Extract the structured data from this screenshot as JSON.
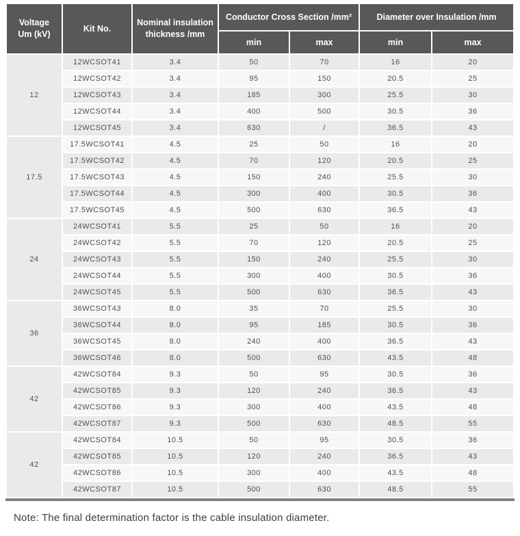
{
  "table": {
    "headers": {
      "voltage": "Voltage\nUm (kV)",
      "kit_no": "Kit No.",
      "nominal_thickness": "Nominal insulation\nthickness /mm",
      "conductor_cross_section": "Conductor Cross Section /mm²",
      "diameter_over_insulation": "Diameter over Insulation /mm",
      "ccs_min": "min",
      "ccs_max": "max",
      "doi_min": "min",
      "doi_max": "max"
    },
    "groups": [
      {
        "voltage": "12",
        "rows": [
          {
            "kit": "12WCSOT41",
            "thickness": "3.4",
            "ccs_min": "50",
            "ccs_max": "70",
            "doi_min": "16",
            "doi_max": "20"
          },
          {
            "kit": "12WCSOT42",
            "thickness": "3.4",
            "ccs_min": "95",
            "ccs_max": "150",
            "doi_min": "20.5",
            "doi_max": "25"
          },
          {
            "kit": "12WCSOT43",
            "thickness": "3.4",
            "ccs_min": "185",
            "ccs_max": "300",
            "doi_min": "25.5",
            "doi_max": "30"
          },
          {
            "kit": "12WCSOT44",
            "thickness": "3.4",
            "ccs_min": "400",
            "ccs_max": "500",
            "doi_min": "30.5",
            "doi_max": "36"
          },
          {
            "kit": "12WCSOT45",
            "thickness": "3.4",
            "ccs_min": "630",
            "ccs_max": "/",
            "doi_min": "36.5",
            "doi_max": "43"
          }
        ]
      },
      {
        "voltage": "17.5",
        "rows": [
          {
            "kit": "17.5WCSOT41",
            "thickness": "4.5",
            "ccs_min": "25",
            "ccs_max": "50",
            "doi_min": "16",
            "doi_max": "20"
          },
          {
            "kit": "17.5WCSOT42",
            "thickness": "4.5",
            "ccs_min": "70",
            "ccs_max": "120",
            "doi_min": "20.5",
            "doi_max": "25"
          },
          {
            "kit": "17.5WCSOT43",
            "thickness": "4.5",
            "ccs_min": "150",
            "ccs_max": "240",
            "doi_min": "25.5",
            "doi_max": "30"
          },
          {
            "kit": "17.5WCSOT44",
            "thickness": "4.5",
            "ccs_min": "300",
            "ccs_max": "400",
            "doi_min": "30.5",
            "doi_max": "36"
          },
          {
            "kit": "17.5WCSOT45",
            "thickness": "4.5",
            "ccs_min": "500",
            "ccs_max": "630",
            "doi_min": "36.5",
            "doi_max": "43"
          }
        ]
      },
      {
        "voltage": "24",
        "rows": [
          {
            "kit": "24WCSOT41",
            "thickness": "5.5",
            "ccs_min": "25",
            "ccs_max": "50",
            "doi_min": "16",
            "doi_max": "20"
          },
          {
            "kit": "24WCSOT42",
            "thickness": "5.5",
            "ccs_min": "70",
            "ccs_max": "120",
            "doi_min": "20.5",
            "doi_max": "25"
          },
          {
            "kit": "24WCSOT43",
            "thickness": "5.5",
            "ccs_min": "150",
            "ccs_max": "240",
            "doi_min": "25.5",
            "doi_max": "30"
          },
          {
            "kit": "24WCSOT44",
            "thickness": "5.5",
            "ccs_min": "300",
            "ccs_max": "400",
            "doi_min": "30.5",
            "doi_max": "36"
          },
          {
            "kit": "24WCSOT45",
            "thickness": "5.5",
            "ccs_min": "500",
            "ccs_max": "630",
            "doi_min": "36.5",
            "doi_max": "43"
          }
        ]
      },
      {
        "voltage": "36",
        "rows": [
          {
            "kit": "36WCSOT43",
            "thickness": "8.0",
            "ccs_min": "35",
            "ccs_max": "70",
            "doi_min": "25.5",
            "doi_max": "30"
          },
          {
            "kit": "36WCSOT44",
            "thickness": "8.0",
            "ccs_min": "95",
            "ccs_max": "185",
            "doi_min": "30.5",
            "doi_max": "36"
          },
          {
            "kit": "36WCSOT45",
            "thickness": "8.0",
            "ccs_min": "240",
            "ccs_max": "400",
            "doi_min": "36.5",
            "doi_max": "43"
          },
          {
            "kit": "36WCSOT46",
            "thickness": "8.0",
            "ccs_min": "500",
            "ccs_max": "630",
            "doi_min": "43.5",
            "doi_max": "48"
          }
        ]
      },
      {
        "voltage": "42",
        "rows": [
          {
            "kit": "42WCSOT84",
            "thickness": "9.3",
            "ccs_min": "50",
            "ccs_max": "95",
            "doi_min": "30.5",
            "doi_max": "36"
          },
          {
            "kit": "42WCSOT85",
            "thickness": "9.3",
            "ccs_min": "120",
            "ccs_max": "240",
            "doi_min": "36.5",
            "doi_max": "43"
          },
          {
            "kit": "42WCSOT86",
            "thickness": "9.3",
            "ccs_min": "300",
            "ccs_max": "400",
            "doi_min": "43.5",
            "doi_max": "48"
          },
          {
            "kit": "42WCSOT87",
            "thickness": "9.3",
            "ccs_min": "500",
            "ccs_max": "630",
            "doi_min": "48.5",
            "doi_max": "55"
          }
        ]
      },
      {
        "voltage": "42",
        "rows": [
          {
            "kit": "42WCSOT84",
            "thickness": "10.5",
            "ccs_min": "50",
            "ccs_max": "95",
            "doi_min": "30.5",
            "doi_max": "36"
          },
          {
            "kit": "42WCSOT85",
            "thickness": "10.5",
            "ccs_min": "120",
            "ccs_max": "240",
            "doi_min": "36.5",
            "doi_max": "43"
          },
          {
            "kit": "42WCSOT86",
            "thickness": "10.5",
            "ccs_min": "300",
            "ccs_max": "400",
            "doi_min": "43.5",
            "doi_max": "48"
          },
          {
            "kit": "42WCSOT87",
            "thickness": "10.5",
            "ccs_min": "500",
            "ccs_max": "630",
            "doi_min": "48.5",
            "doi_max": "55"
          }
        ]
      }
    ]
  },
  "note": "Note: The final determination factor is the cable insulation diameter.",
  "colors": {
    "header_bg": "#595757",
    "header_text": "#ffffff",
    "stripe_dark": "#eaeaea",
    "stripe_light": "#f7f7f7",
    "bottom_border": "#818181",
    "body_text": "#4f4f4f"
  }
}
